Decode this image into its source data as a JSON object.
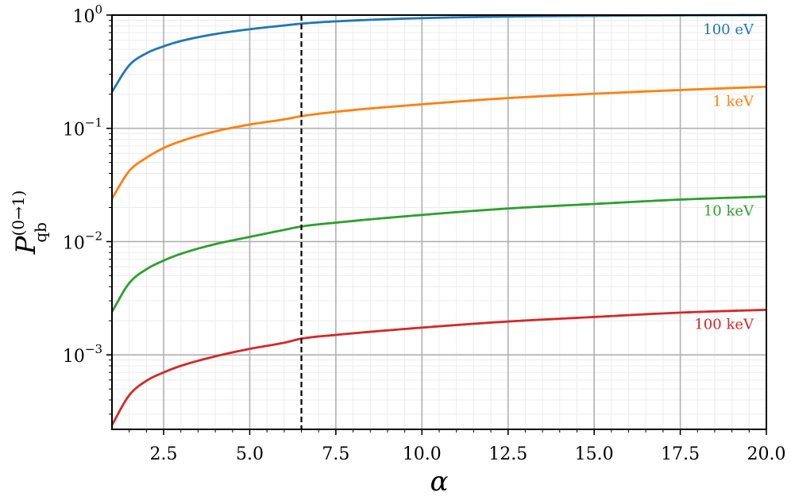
{
  "chart_data": {
    "type": "line",
    "title": "",
    "xlabel": "α",
    "ylabel": {
      "base": "P",
      "subscript": "qb",
      "superscript": "(0→1)"
    },
    "xlim": [
      1.0,
      20.0
    ],
    "ylim": [
      0.00022,
      1.0
    ],
    "yscale": "log",
    "grid": true,
    "x_ticks": [
      "2.5",
      "5.0",
      "7.5",
      "10.0",
      "12.5",
      "15.0",
      "17.5",
      "20.0"
    ],
    "x_tick_values": [
      2.5,
      5.0,
      7.5,
      10.0,
      12.5,
      15.0,
      17.5,
      20.0
    ],
    "y_ticks": [
      {
        "value": 1.0,
        "base": "10",
        "exp": "0"
      },
      {
        "value": 0.1,
        "base": "10",
        "exp": "−1"
      },
      {
        "value": 0.01,
        "base": "10",
        "exp": "−2"
      },
      {
        "value": 0.001,
        "base": "10",
        "exp": "−3"
      }
    ],
    "vline": {
      "x": 6.5,
      "style": "dashed",
      "color": "#000000"
    },
    "series": [
      {
        "name": "100 eV",
        "color": "#1f77b4",
        "x": [
          1.0,
          1.5,
          2.0,
          2.5,
          3.0,
          4.0,
          5.0,
          6.0,
          6.5,
          7.5,
          10.0,
          12.5,
          15.0,
          17.5,
          20.0
        ],
        "values": [
          0.21,
          0.36,
          0.46,
          0.53,
          0.59,
          0.68,
          0.75,
          0.81,
          0.84,
          0.88,
          0.94,
          0.97,
          0.985,
          0.995,
          1.0
        ]
      },
      {
        "name": "1 keV",
        "color": "#ff7f0e",
        "x": [
          1.0,
          1.5,
          2.0,
          2.5,
          3.0,
          4.0,
          5.0,
          6.0,
          6.5,
          7.5,
          10.0,
          12.5,
          15.0,
          17.5,
          20.0
        ],
        "values": [
          0.024,
          0.042,
          0.055,
          0.067,
          0.077,
          0.094,
          0.108,
          0.12,
          0.128,
          0.14,
          0.163,
          0.185,
          0.202,
          0.218,
          0.233
        ]
      },
      {
        "name": "10 keV",
        "color": "#2ca02c",
        "x": [
          1.0,
          1.5,
          2.0,
          2.5,
          3.0,
          4.0,
          5.0,
          6.0,
          6.5,
          7.5,
          10.0,
          12.5,
          15.0,
          17.5,
          20.0
        ],
        "values": [
          0.0024,
          0.0043,
          0.0057,
          0.0068,
          0.0078,
          0.0095,
          0.011,
          0.0127,
          0.0136,
          0.0147,
          0.0172,
          0.0196,
          0.0215,
          0.0235,
          0.025
        ]
      },
      {
        "name": "100 keV",
        "color": "#d62728",
        "x": [
          1.0,
          1.5,
          2.0,
          2.5,
          3.0,
          4.0,
          5.0,
          6.0,
          6.5,
          7.5,
          10.0,
          12.5,
          15.0,
          17.5,
          20.0
        ],
        "values": [
          0.00024,
          0.00044,
          0.00059,
          0.0007,
          0.0008,
          0.00097,
          0.00113,
          0.00128,
          0.00139,
          0.0015,
          0.00174,
          0.00197,
          0.00216,
          0.00236,
          0.0025
        ]
      }
    ]
  }
}
